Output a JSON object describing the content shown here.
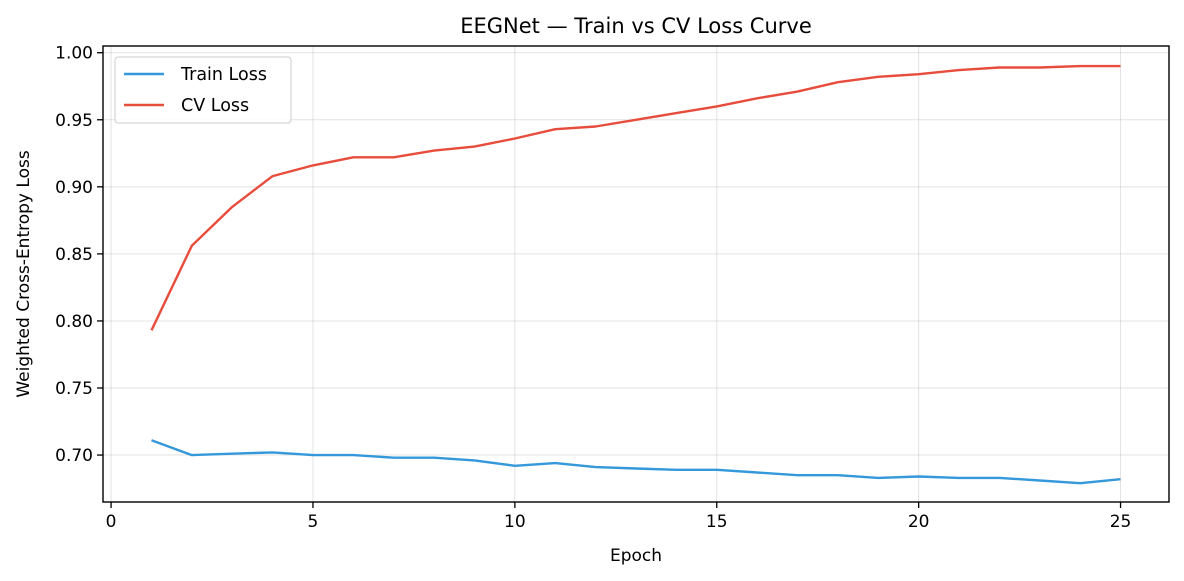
{
  "chart_data": {
    "type": "line",
    "title": "EEGNet — Train vs CV Loss Curve",
    "xlabel": "Epoch",
    "ylabel": "Weighted Cross-Entropy Loss",
    "xlim": [
      -0.2,
      26.2
    ],
    "ylim": [
      0.665,
      1.005
    ],
    "xticks": [
      0,
      5,
      10,
      15,
      20,
      25
    ],
    "yticks": [
      0.7,
      0.75,
      0.8,
      0.85,
      0.9,
      0.95,
      1.0
    ],
    "ytick_labels": [
      "0.70",
      "0.75",
      "0.80",
      "0.85",
      "0.90",
      "0.95",
      "1.00"
    ],
    "grid": true,
    "legend_position": "top-left",
    "x": [
      1,
      2,
      3,
      4,
      5,
      6,
      7,
      8,
      9,
      10,
      11,
      12,
      13,
      14,
      15,
      16,
      17,
      18,
      19,
      20,
      21,
      22,
      23,
      24,
      25
    ],
    "series": [
      {
        "name": "Train Loss",
        "color": "#3498db",
        "values": [
          0.711,
          0.7,
          0.701,
          0.702,
          0.7,
          0.7,
          0.698,
          0.698,
          0.696,
          0.692,
          0.694,
          0.691,
          0.69,
          0.689,
          0.689,
          0.687,
          0.685,
          0.685,
          0.683,
          0.684,
          0.683,
          0.683,
          0.681,
          0.679,
          0.682
        ]
      },
      {
        "name": "CV Loss",
        "color": "#e74c3c",
        "values": [
          0.793,
          0.856,
          0.885,
          0.908,
          0.916,
          0.922,
          0.922,
          0.927,
          0.93,
          0.936,
          0.943,
          0.945,
          0.95,
          0.955,
          0.96,
          0.966,
          0.971,
          0.978,
          0.982,
          0.984,
          0.987,
          0.989,
          0.989,
          0.99,
          0.99
        ]
      }
    ]
  }
}
